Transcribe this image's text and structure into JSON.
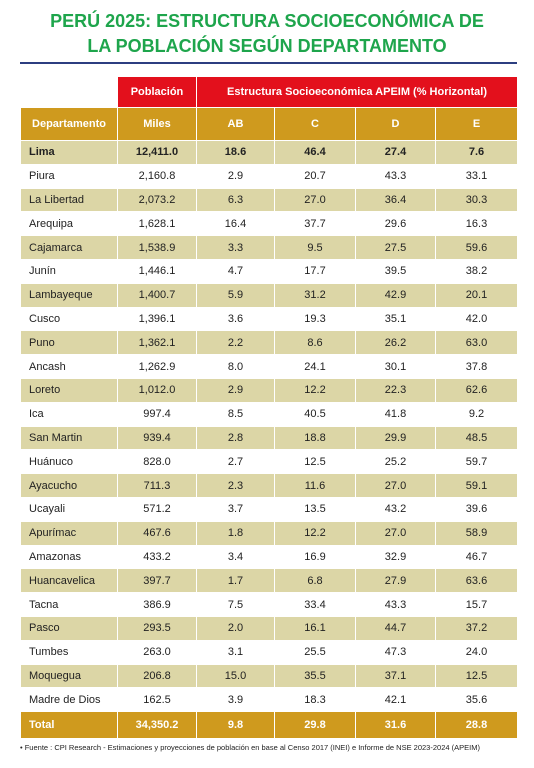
{
  "header": {
    "title_lines": [
      "PERÚ 2025: ESTRUCTURA SOCIOECONÓMICA DE",
      "LA POBLACIÓN SEGÚN DEPARTAMENTO"
    ]
  },
  "table": {
    "group_headers": [
      "Población",
      "Estructura Socioeconómica APEIM (% Horizontal)"
    ],
    "columns": [
      "Departamento",
      "Miles",
      "AB",
      "C",
      "D",
      "E"
    ],
    "rows": [
      [
        "Lima",
        "12,411.0",
        "18.6",
        "46.4",
        "27.4",
        "7.6"
      ],
      [
        "Piura",
        "2,160.8",
        "2.9",
        "20.7",
        "43.3",
        "33.1"
      ],
      [
        "La Libertad",
        "2,073.2",
        "6.3",
        "27.0",
        "36.4",
        "30.3"
      ],
      [
        "Arequipa",
        "1,628.1",
        "16.4",
        "37.7",
        "29.6",
        "16.3"
      ],
      [
        "Cajamarca",
        "1,538.9",
        "3.3",
        "9.5",
        "27.5",
        "59.6"
      ],
      [
        "Junín",
        "1,446.1",
        "4.7",
        "17.7",
        "39.5",
        "38.2"
      ],
      [
        "Lambayeque",
        "1,400.7",
        "5.9",
        "31.2",
        "42.9",
        "20.1"
      ],
      [
        "Cusco",
        "1,396.1",
        "3.6",
        "19.3",
        "35.1",
        "42.0"
      ],
      [
        "Puno",
        "1,362.1",
        "2.2",
        "8.6",
        "26.2",
        "63.0"
      ],
      [
        "Ancash",
        "1,262.9",
        "8.0",
        "24.1",
        "30.1",
        "37.8"
      ],
      [
        "Loreto",
        "1,012.0",
        "2.9",
        "12.2",
        "22.3",
        "62.6"
      ],
      [
        "Ica",
        "997.4",
        "8.5",
        "40.5",
        "41.8",
        "9.2"
      ],
      [
        "San Martin",
        "939.4",
        "2.8",
        "18.8",
        "29.9",
        "48.5"
      ],
      [
        "Huánuco",
        "828.0",
        "2.7",
        "12.5",
        "25.2",
        "59.7"
      ],
      [
        "Ayacucho",
        "711.3",
        "2.3",
        "11.6",
        "27.0",
        "59.1"
      ],
      [
        "Ucayali",
        "571.2",
        "3.7",
        "13.5",
        "43.2",
        "39.6"
      ],
      [
        "Apurímac",
        "467.6",
        "1.8",
        "12.2",
        "27.0",
        "58.9"
      ],
      [
        "Amazonas",
        "433.2",
        "3.4",
        "16.9",
        "32.9",
        "46.7"
      ],
      [
        "Huancavelica",
        "397.7",
        "1.7",
        "6.8",
        "27.9",
        "63.6"
      ],
      [
        "Tacna",
        "386.9",
        "7.5",
        "33.4",
        "43.3",
        "15.7"
      ],
      [
        "Pasco",
        "293.5",
        "2.0",
        "16.1",
        "44.7",
        "37.2"
      ],
      [
        "Tumbes",
        "263.0",
        "3.1",
        "25.5",
        "47.3",
        "24.0"
      ],
      [
        "Moquegua",
        "206.8",
        "15.0",
        "35.5",
        "37.1",
        "12.5"
      ],
      [
        "Madre de Dios",
        "162.5",
        "3.9",
        "18.3",
        "42.1",
        "35.6"
      ]
    ],
    "total": [
      "Total",
      "34,350.2",
      "9.8",
      "29.8",
      "31.6",
      "28.8"
    ]
  },
  "footnote": "Fuente : CPI Research - Estimaciones y proyecciones de población en base al Censo 2017 (INEI) e Informe de NSE 2023-2024 (APEIM)"
}
